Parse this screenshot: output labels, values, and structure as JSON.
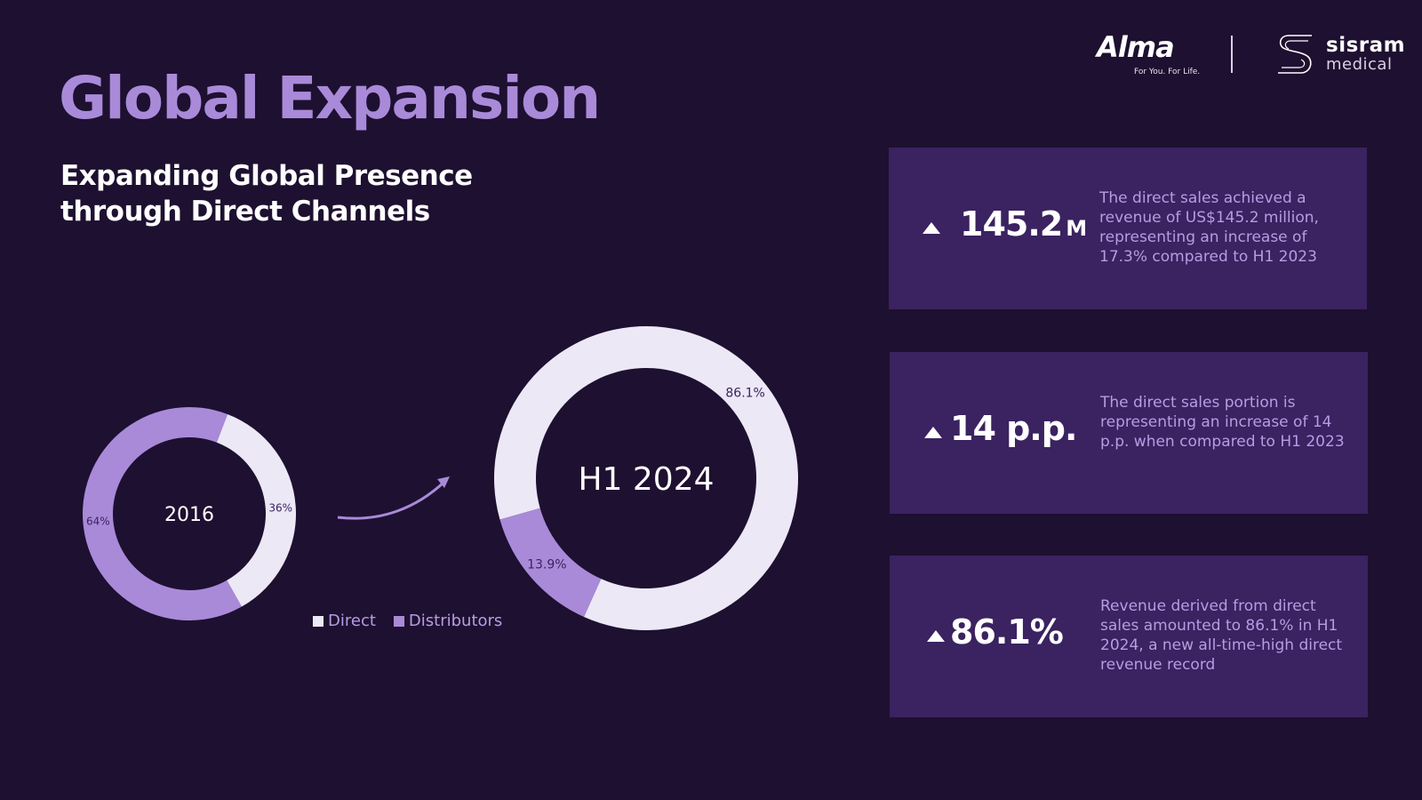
{
  "slide": {
    "title": "Global Expansion",
    "subtitle_line1": "Expanding Global Presence",
    "subtitle_line2": "through Direct Channels"
  },
  "logos": {
    "alma_name": "Alma",
    "alma_tagline": "For You. For Life.",
    "sisram_name": "sisram",
    "sisram_sub": "medical"
  },
  "colors": {
    "background": "#1e1030",
    "direct": "#ece8f6",
    "distributors": "#a98ad9",
    "card": "#3b2260",
    "accent_text": "#b69ce3"
  },
  "chart_data": [
    {
      "type": "pie",
      "style": "donut",
      "title": "2016",
      "categories": [
        "Direct",
        "Distributors"
      ],
      "values": [
        36,
        64
      ],
      "labels": [
        "36%",
        "64%"
      ]
    },
    {
      "type": "pie",
      "style": "donut",
      "title": "H1 2024",
      "categories": [
        "Direct",
        "Distributors"
      ],
      "values": [
        86.1,
        13.9
      ],
      "labels": [
        "86.1%",
        "13.9%"
      ]
    }
  ],
  "legend": [
    {
      "label": "Direct",
      "color": "#ece8f6"
    },
    {
      "label": "Distributors",
      "color": "#a98ad9"
    }
  ],
  "stats": [
    {
      "value": "145.2",
      "unit": "M",
      "description": "The direct sales achieved a revenue of US$145.2 million, representing an increase of 17.3% compared to H1 2023"
    },
    {
      "value": "14 p.p.",
      "unit": "",
      "description": "The direct sales portion is representing an increase of 14 p.p. when compared to H1 2023"
    },
    {
      "value": "86.1%",
      "unit": "",
      "description": "Revenue derived from direct sales amounted to 86.1% in H1 2024, a new all-time-high direct revenue record"
    }
  ]
}
